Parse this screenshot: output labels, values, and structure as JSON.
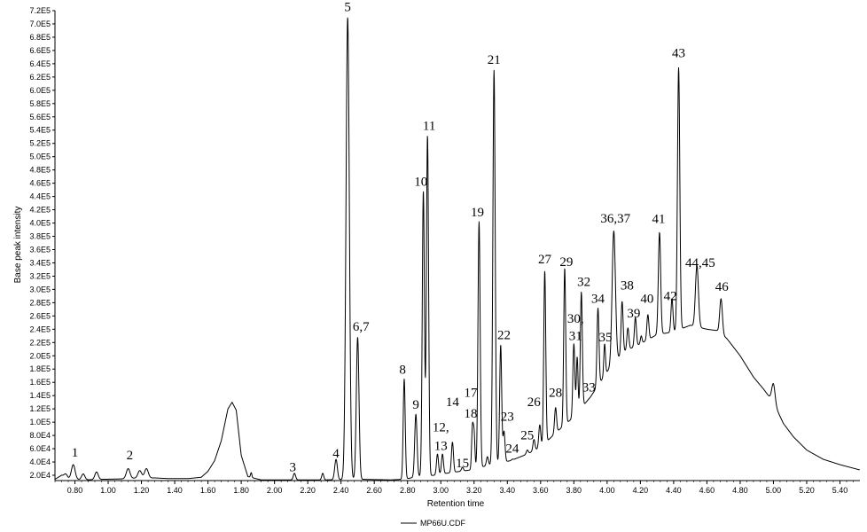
{
  "chart_data": {
    "type": "line",
    "title": "",
    "xlabel": "Retention time",
    "ylabel": "Base peak intensity",
    "xlim": [
      0.68,
      5.52
    ],
    "ylim": [
      12000,
      720000
    ],
    "grid": false,
    "legend": "bottom-left",
    "series_name": "MP66U.CDF",
    "line_color": "#000000",
    "x_ticks": [
      {
        "value": 0.8,
        "label": "0.80"
      },
      {
        "value": 1.0,
        "label": "1.00"
      },
      {
        "value": 1.2,
        "label": "1.20"
      },
      {
        "value": 1.4,
        "label": "1.40"
      },
      {
        "value": 1.6,
        "label": "1.60"
      },
      {
        "value": 1.8,
        "label": "1.80"
      },
      {
        "value": 2.0,
        "label": "2.00"
      },
      {
        "value": 2.2,
        "label": "2.20"
      },
      {
        "value": 2.4,
        "label": "2.40"
      },
      {
        "value": 2.6,
        "label": "2.60"
      },
      {
        "value": 2.8,
        "label": "2.80"
      },
      {
        "value": 3.0,
        "label": "3.00"
      },
      {
        "value": 3.2,
        "label": "3.20"
      },
      {
        "value": 3.4,
        "label": "3.40"
      },
      {
        "value": 3.6,
        "label": "3.60"
      },
      {
        "value": 3.8,
        "label": "3.80"
      },
      {
        "value": 4.0,
        "label": "4.00"
      },
      {
        "value": 4.2,
        "label": "4.20"
      },
      {
        "value": 4.4,
        "label": "4.40"
      },
      {
        "value": 4.6,
        "label": "4.60"
      },
      {
        "value": 4.8,
        "label": "4.80"
      },
      {
        "value": 5.0,
        "label": "5.00"
      },
      {
        "value": 5.2,
        "label": "5.20"
      },
      {
        "value": 5.4,
        "label": "5.40"
      }
    ],
    "y_ticks": [
      {
        "value": 20000,
        "label": "2.0E4"
      },
      {
        "value": 40000,
        "label": "4.0E4"
      },
      {
        "value": 60000,
        "label": "6.0E4"
      },
      {
        "value": 80000,
        "label": "8.0E4"
      },
      {
        "value": 100000,
        "label": "1.0E5"
      },
      {
        "value": 120000,
        "label": "1.2E5"
      },
      {
        "value": 140000,
        "label": "1.4E5"
      },
      {
        "value": 160000,
        "label": "1.6E5"
      },
      {
        "value": 180000,
        "label": "1.8E5"
      },
      {
        "value": 200000,
        "label": "2.0E5"
      },
      {
        "value": 220000,
        "label": "2.2E5"
      },
      {
        "value": 240000,
        "label": "2.4E5"
      },
      {
        "value": 260000,
        "label": "2.6E5"
      },
      {
        "value": 280000,
        "label": "2.8E5"
      },
      {
        "value": 300000,
        "label": "3.0E5"
      },
      {
        "value": 320000,
        "label": "3.2E5"
      },
      {
        "value": 340000,
        "label": "3.4E5"
      },
      {
        "value": 360000,
        "label": "3.6E5"
      },
      {
        "value": 380000,
        "label": "3.8E5"
      },
      {
        "value": 400000,
        "label": "4.0E5"
      },
      {
        "value": 420000,
        "label": "4.2E5"
      },
      {
        "value": 440000,
        "label": "4.4E5"
      },
      {
        "value": 460000,
        "label": "4.6E5"
      },
      {
        "value": 480000,
        "label": "4.8E5"
      },
      {
        "value": 500000,
        "label": "5.0E5"
      },
      {
        "value": 520000,
        "label": "5.2E5"
      },
      {
        "value": 540000,
        "label": "5.4E5"
      },
      {
        "value": 560000,
        "label": "5.6E5"
      },
      {
        "value": 580000,
        "label": "5.8E5"
      },
      {
        "value": 600000,
        "label": "6.0E5"
      },
      {
        "value": 620000,
        "label": "6.2E5"
      },
      {
        "value": 640000,
        "label": "6.4E5"
      },
      {
        "value": 660000,
        "label": "6.6E5"
      },
      {
        "value": 680000,
        "label": "6.8E5"
      },
      {
        "value": 700000,
        "label": "7.0E5"
      },
      {
        "value": 720000,
        "label": "7.2E5"
      }
    ],
    "baseline": [
      [
        0.68,
        14000
      ],
      [
        0.72,
        20000
      ],
      [
        0.76,
        15000
      ],
      [
        0.8,
        14000
      ],
      [
        0.86,
        13000
      ],
      [
        0.98,
        14000
      ],
      [
        1.08,
        14500
      ],
      [
        1.18,
        16000
      ],
      [
        1.28,
        16000
      ],
      [
        1.36,
        15000
      ],
      [
        1.48,
        15000
      ],
      [
        1.56,
        17000
      ],
      [
        1.6,
        26000
      ],
      [
        1.64,
        42000
      ],
      [
        1.68,
        72000
      ],
      [
        1.72,
        120000
      ],
      [
        1.745,
        130000
      ],
      [
        1.77,
        118000
      ],
      [
        1.8,
        50000
      ],
      [
        1.84,
        18000
      ],
      [
        1.92,
        13000
      ],
      [
        2.3,
        13000
      ],
      [
        2.5,
        14000
      ],
      [
        2.7,
        13000
      ],
      [
        2.78,
        14000
      ],
      [
        2.86,
        18000
      ],
      [
        2.96,
        20000
      ],
      [
        3.06,
        24000
      ],
      [
        3.18,
        28000
      ],
      [
        3.3,
        36000
      ],
      [
        3.42,
        42000
      ],
      [
        3.52,
        52000
      ],
      [
        3.6,
        62000
      ],
      [
        3.7,
        86000
      ],
      [
        3.8,
        108000
      ],
      [
        3.9,
        138000
      ],
      [
        4.0,
        176000
      ],
      [
        4.1,
        206000
      ],
      [
        4.2,
        218000
      ],
      [
        4.3,
        232000
      ],
      [
        4.4,
        236000
      ],
      [
        4.5,
        246000
      ],
      [
        4.6,
        240000
      ],
      [
        4.66,
        238000
      ],
      [
        4.72,
        226000
      ],
      [
        4.8,
        200000
      ],
      [
        4.88,
        168000
      ],
      [
        4.94,
        150000
      ],
      [
        5.0,
        130000
      ],
      [
        5.06,
        98000
      ],
      [
        5.12,
        78000
      ],
      [
        5.2,
        58000
      ],
      [
        5.3,
        44000
      ],
      [
        5.4,
        36000
      ],
      [
        5.46,
        32000
      ],
      [
        5.52,
        28000
      ]
    ],
    "peaks": [
      {
        "label": "",
        "rt": 0.745,
        "height": 22000,
        "width": 0.01
      },
      {
        "label": "1",
        "rt": 0.79,
        "height": 36000,
        "width": 0.011
      },
      {
        "label": "",
        "rt": 0.85,
        "height": 22000,
        "width": 0.01
      },
      {
        "label": "",
        "rt": 0.93,
        "height": 25000,
        "width": 0.01
      },
      {
        "label": "2",
        "rt": 1.12,
        "height": 30000,
        "width": 0.011
      },
      {
        "label": "",
        "rt": 1.19,
        "height": 27000,
        "width": 0.011
      },
      {
        "label": "",
        "rt": 1.23,
        "height": 30000,
        "width": 0.011
      },
      {
        "label": "",
        "rt": 1.86,
        "height": 24000,
        "width": 0.004
      },
      {
        "label": "3",
        "rt": 2.12,
        "height": 23000,
        "width": 0.007
      },
      {
        "label": "",
        "rt": 2.29,
        "height": 23000,
        "width": 0.006
      },
      {
        "label": "4",
        "rt": 2.37,
        "height": 44000,
        "width": 0.008
      },
      {
        "label": "5",
        "rt": 2.44,
        "height": 710000,
        "width": 0.01
      },
      {
        "label": "6,7",
        "rt": 2.5,
        "height": 228000,
        "width": 0.008
      },
      {
        "label": "8",
        "rt": 2.78,
        "height": 165000,
        "width": 0.006
      },
      {
        "label": "9",
        "rt": 2.85,
        "height": 112000,
        "width": 0.007
      },
      {
        "label": "10",
        "rt": 2.895,
        "height": 448000,
        "width": 0.0065
      },
      {
        "label": "11",
        "rt": 2.92,
        "height": 532000,
        "width": 0.0065
      },
      {
        "label": "12,",
        "rt": 2.98,
        "height": 52000,
        "width": 0.006
      },
      {
        "label": "13",
        "rt": 3.01,
        "height": 52000,
        "width": 0.006
      },
      {
        "label": "14",
        "rt": 3.07,
        "height": 70000,
        "width": 0.006
      },
      {
        "label": "15",
        "rt": 3.13,
        "height": 32000,
        "width": 0.006
      },
      {
        "label": "17",
        "rt": 3.19,
        "height": 90000,
        "width": 0.005
      },
      {
        "label": "18",
        "rt": 3.2,
        "height": 82000,
        "width": 0.005
      },
      {
        "label": "19",
        "rt": 3.23,
        "height": 402000,
        "width": 0.0065
      },
      {
        "label": "",
        "rt": 3.28,
        "height": 48000,
        "width": 0.006
      },
      {
        "label": "21",
        "rt": 3.32,
        "height": 630000,
        "width": 0.007
      },
      {
        "label": "22",
        "rt": 3.36,
        "height": 216000,
        "width": 0.006
      },
      {
        "label": "23",
        "rt": 3.38,
        "height": 86000,
        "width": 0.006
      },
      {
        "label": "24",
        "rt": 3.43,
        "height": 44000,
        "width": 0.006
      },
      {
        "label": "25",
        "rt": 3.52,
        "height": 58000,
        "width": 0.006
      },
      {
        "label": "26",
        "rt": 3.56,
        "height": 74000,
        "width": 0.006
      },
      {
        "label": "",
        "rt": 3.595,
        "height": 96000,
        "width": 0.006
      },
      {
        "label": "27",
        "rt": 3.625,
        "height": 328000,
        "width": 0.006
      },
      {
        "label": "28",
        "rt": 3.69,
        "height": 122000,
        "width": 0.006
      },
      {
        "label": "29",
        "rt": 3.745,
        "height": 332000,
        "width": 0.006
      },
      {
        "label": "30,",
        "rt": 3.8,
        "height": 218000,
        "width": 0.006
      },
      {
        "label": "31",
        "rt": 3.82,
        "height": 198000,
        "width": 0.005
      },
      {
        "label": "32",
        "rt": 3.845,
        "height": 296000,
        "width": 0.006
      },
      {
        "label": "33",
        "rt": 3.88,
        "height": 118000,
        "width": 0.005
      },
      {
        "label": "",
        "rt": 3.9,
        "height": 130000,
        "width": 0.005
      },
      {
        "label": "34",
        "rt": 3.945,
        "height": 272000,
        "width": 0.006
      },
      {
        "label": "35",
        "rt": 3.985,
        "height": 218000,
        "width": 0.005
      },
      {
        "label": "36,37",
        "rt": 4.04,
        "height": 388000,
        "width": 0.01
      },
      {
        "label": "38",
        "rt": 4.09,
        "height": 282000,
        "width": 0.006
      },
      {
        "label": "",
        "rt": 4.125,
        "height": 242000,
        "width": 0.006
      },
      {
        "label": "39",
        "rt": 4.17,
        "height": 258000,
        "width": 0.006
      },
      {
        "label": "",
        "rt": 4.205,
        "height": 230000,
        "width": 0.005
      },
      {
        "label": "40",
        "rt": 4.245,
        "height": 262000,
        "width": 0.006
      },
      {
        "label": "41",
        "rt": 4.315,
        "height": 386000,
        "width": 0.007
      },
      {
        "label": "42",
        "rt": 4.39,
        "height": 286000,
        "width": 0.006
      },
      {
        "label": "43",
        "rt": 4.43,
        "height": 634000,
        "width": 0.007
      },
      {
        "label": "44,45",
        "rt": 4.54,
        "height": 336000,
        "width": 0.009
      },
      {
        "label": "46",
        "rt": 4.685,
        "height": 286000,
        "width": 0.008
      },
      {
        "label": "",
        "rt": 5.0,
        "height": 158000,
        "width": 0.01
      }
    ],
    "peak_labels": [
      {
        "text": "1",
        "rt": 0.8,
        "y": 48000
      },
      {
        "text": "2",
        "rt": 1.13,
        "y": 44000
      },
      {
        "text": "3",
        "rt": 2.11,
        "y": 26000
      },
      {
        "text": "4",
        "rt": 2.37,
        "y": 47000
      },
      {
        "text": "5",
        "rt": 2.44,
        "y": 719000
      },
      {
        "text": "6,7",
        "rt": 2.52,
        "y": 238000
      },
      {
        "text": "8",
        "rt": 2.77,
        "y": 173000
      },
      {
        "text": "9",
        "rt": 2.85,
        "y": 120000
      },
      {
        "text": "10",
        "rt": 2.88,
        "y": 456000
      },
      {
        "text": "11",
        "rt": 2.93,
        "y": 540000
      },
      {
        "text": "12,",
        "rt": 3.0,
        "y": 86000
      },
      {
        "text": "13",
        "rt": 3.0,
        "y": 58000
      },
      {
        "text": "14",
        "rt": 3.07,
        "y": 124000
      },
      {
        "text": "15",
        "rt": 3.13,
        "y": 32000
      },
      {
        "text": "17",
        "rt": 3.18,
        "y": 138000
      },
      {
        "text": "18",
        "rt": 3.18,
        "y": 107000
      },
      {
        "text": "19",
        "rt": 3.22,
        "y": 410000
      },
      {
        "text": "21",
        "rt": 3.32,
        "y": 640000
      },
      {
        "text": "22",
        "rt": 3.38,
        "y": 225000
      },
      {
        "text": "23",
        "rt": 3.4,
        "y": 102000
      },
      {
        "text": "24",
        "rt": 3.43,
        "y": 54000
      },
      {
        "text": "25",
        "rt": 3.52,
        "y": 74000
      },
      {
        "text": "26",
        "rt": 3.56,
        "y": 124000
      },
      {
        "text": "27",
        "rt": 3.625,
        "y": 339000
      },
      {
        "text": "28",
        "rt": 3.69,
        "y": 138000
      },
      {
        "text": "29",
        "rt": 3.755,
        "y": 335000
      },
      {
        "text": "30,",
        "rt": 3.81,
        "y": 250000
      },
      {
        "text": "31",
        "rt": 3.81,
        "y": 224000
      },
      {
        "text": "32",
        "rt": 3.86,
        "y": 305000
      },
      {
        "text": "33",
        "rt": 3.89,
        "y": 146000
      },
      {
        "text": "34",
        "rt": 3.945,
        "y": 280000
      },
      {
        "text": "35",
        "rt": 3.99,
        "y": 222000
      },
      {
        "text": "36,37",
        "rt": 4.05,
        "y": 401000
      },
      {
        "text": "38",
        "rt": 4.12,
        "y": 300000
      },
      {
        "text": "39",
        "rt": 4.16,
        "y": 258000
      },
      {
        "text": "40",
        "rt": 4.24,
        "y": 280000
      },
      {
        "text": "41",
        "rt": 4.31,
        "y": 400000
      },
      {
        "text": "42",
        "rt": 4.38,
        "y": 284000
      },
      {
        "text": "43",
        "rt": 4.43,
        "y": 650000
      },
      {
        "text": "44,45",
        "rt": 4.56,
        "y": 334000
      },
      {
        "text": "46",
        "rt": 4.69,
        "y": 298000
      }
    ]
  }
}
